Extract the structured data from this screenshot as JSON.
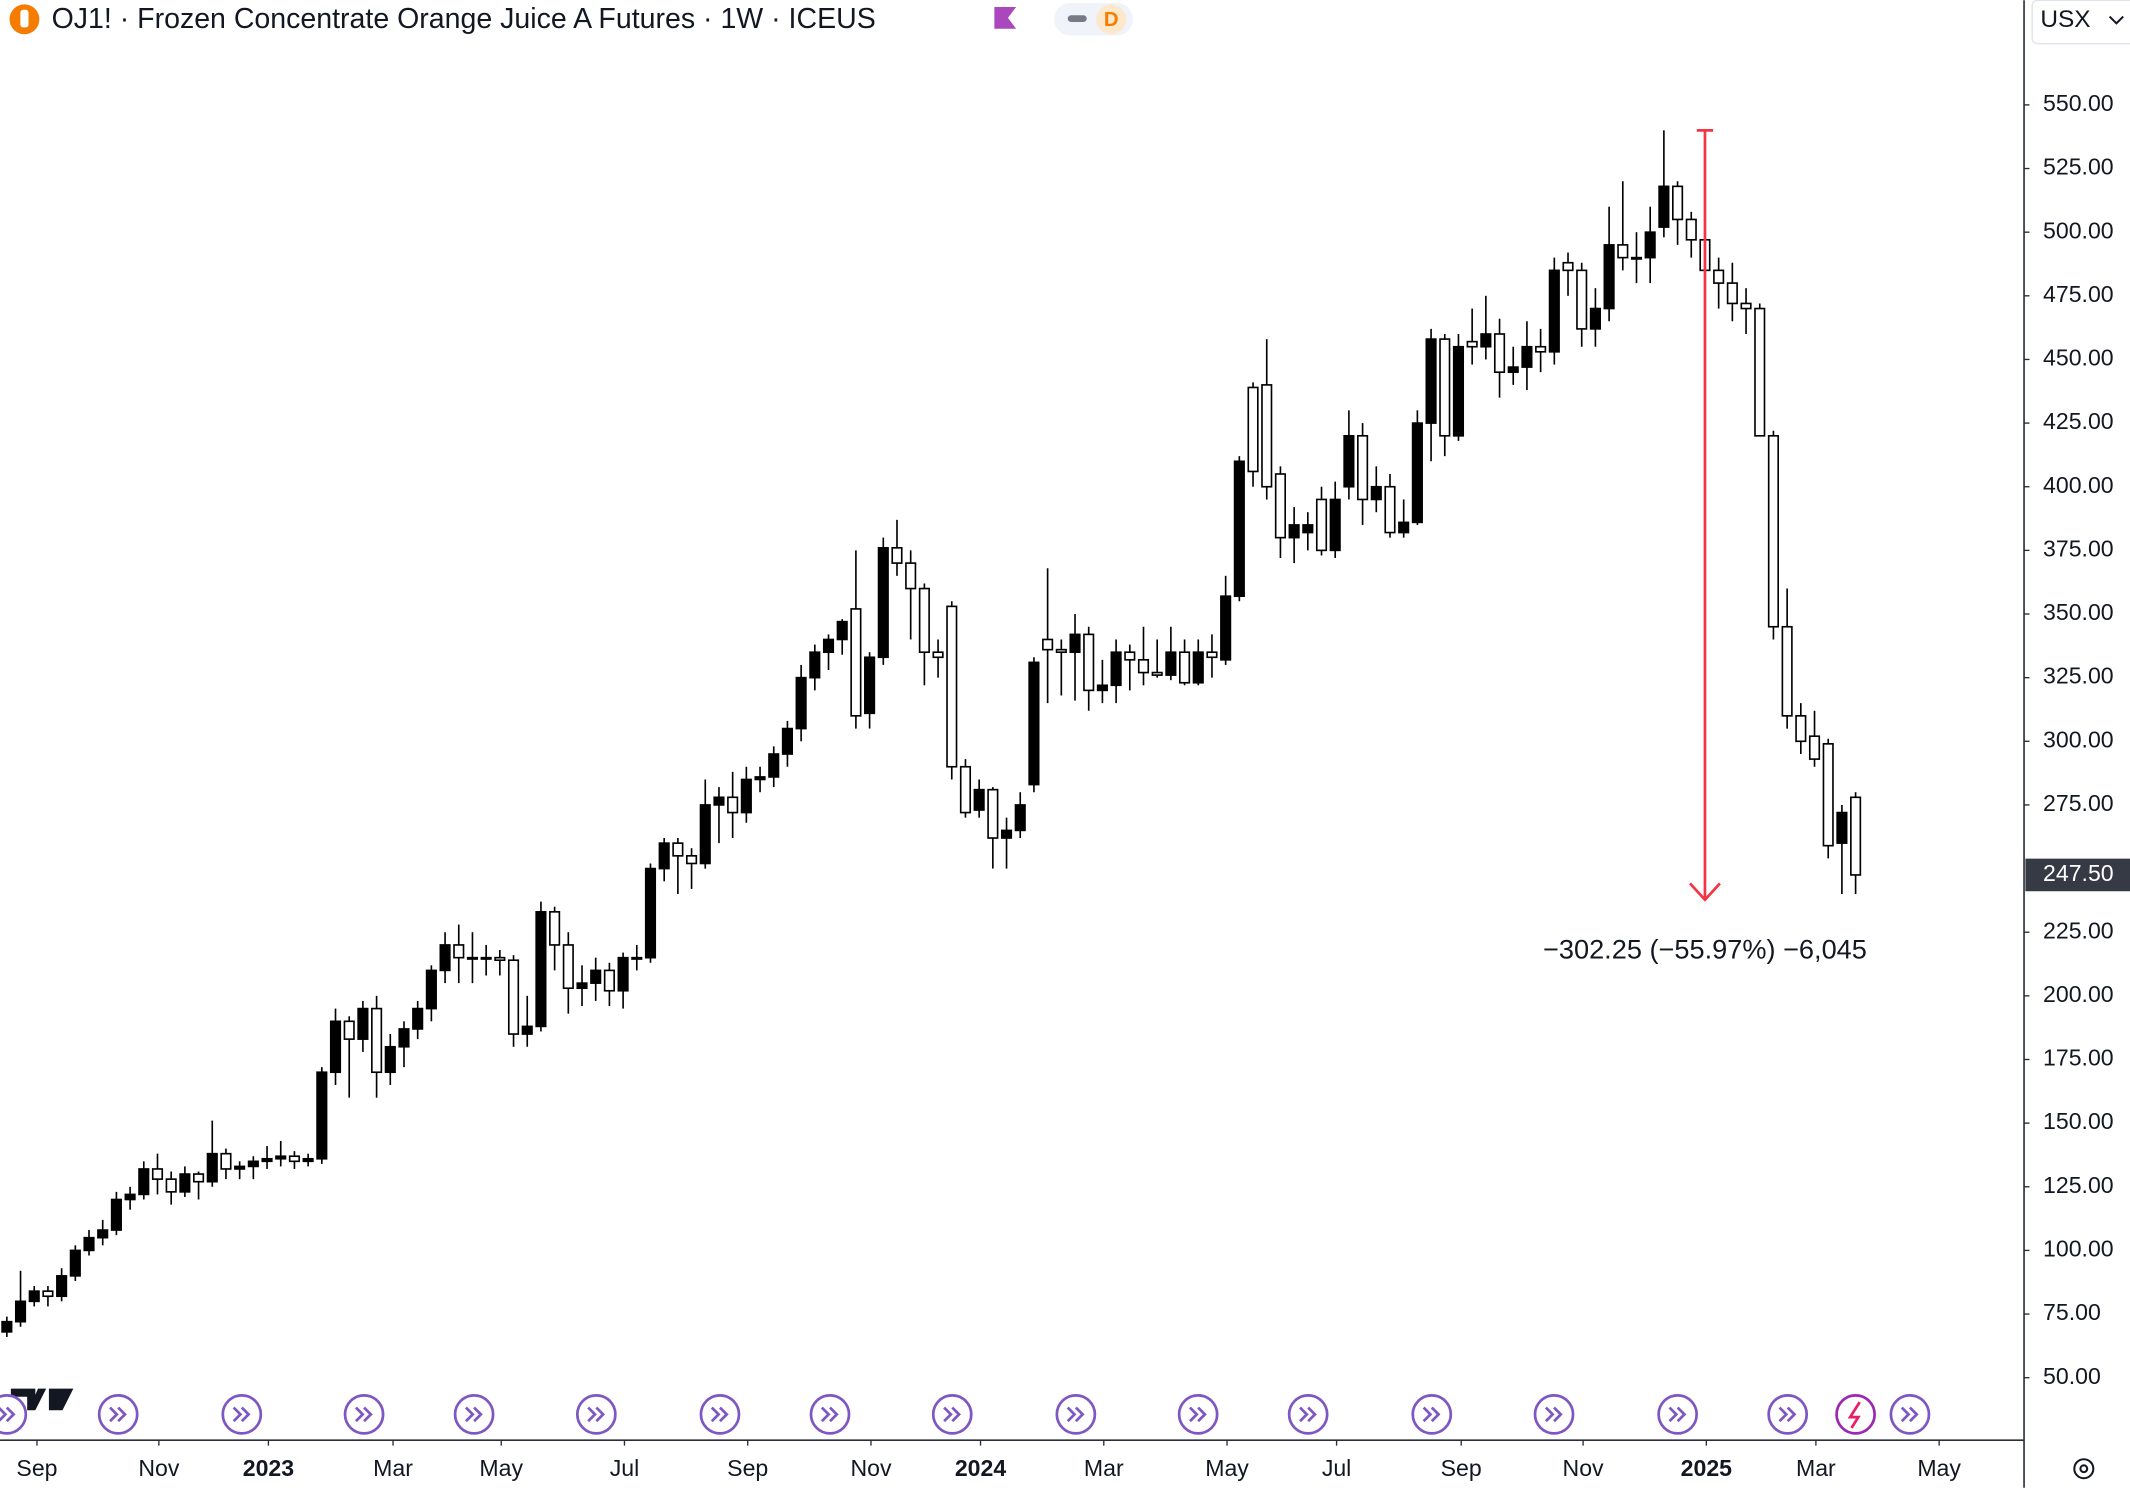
{
  "header": {
    "title": "OJ1! · Frozen Concentrate Orange Juice A Futures · 1W · ICEUS",
    "interval_badge": "D",
    "currency": "USX"
  },
  "chart_data": {
    "type": "candlestick",
    "up_color": "#000000",
    "down_color": "#ffffff",
    "wick_color": "#000000",
    "xlim": [
      -0.5,
      147.3
    ],
    "ylim": [
      25.45,
      591.1
    ],
    "xticks": [
      {
        "value": 2.2,
        "label": "Sep"
      },
      {
        "value": 11.1,
        "label": "Nov"
      },
      {
        "value": 19.1,
        "label": "2023"
      },
      {
        "value": 28.2,
        "label": "Mar"
      },
      {
        "value": 36.1,
        "label": "May"
      },
      {
        "value": 45.1,
        "label": "Jul"
      },
      {
        "value": 54.1,
        "label": "Sep"
      },
      {
        "value": 63.1,
        "label": "Nov"
      },
      {
        "value": 71.1,
        "label": "2024"
      },
      {
        "value": 80.1,
        "label": "Mar"
      },
      {
        "value": 89.1,
        "label": "May"
      },
      {
        "value": 97.1,
        "label": "Jul"
      },
      {
        "value": 106.2,
        "label": "Sep"
      },
      {
        "value": 115.1,
        "label": "Nov"
      },
      {
        "value": 124.1,
        "label": "2025"
      },
      {
        "value": 132.1,
        "label": "Mar"
      },
      {
        "value": 141.1,
        "label": "May"
      }
    ],
    "yticks": [
      {
        "value": 50,
        "label": "50.00"
      },
      {
        "value": 75,
        "label": "75.00"
      },
      {
        "value": 100,
        "label": "100.00"
      },
      {
        "value": 125,
        "label": "125.00"
      },
      {
        "value": 150,
        "label": "150.00"
      },
      {
        "value": 175,
        "label": "175.00"
      },
      {
        "value": 200,
        "label": "200.00"
      },
      {
        "value": 225,
        "label": "225.00"
      },
      {
        "value": 275,
        "label": "275.00"
      },
      {
        "value": 300,
        "label": "300.00"
      },
      {
        "value": 325,
        "label": "325.00"
      },
      {
        "value": 350,
        "label": "350.00"
      },
      {
        "value": 375,
        "label": "375.00"
      },
      {
        "value": 400,
        "label": "400.00"
      },
      {
        "value": 425,
        "label": "425.00"
      },
      {
        "value": 450,
        "label": "450.00"
      },
      {
        "value": 475,
        "label": "475.00"
      },
      {
        "value": 500,
        "label": "500.00"
      },
      {
        "value": 525,
        "label": "525.00"
      },
      {
        "value": 550,
        "label": "550.00"
      }
    ],
    "last_price": {
      "value": 247.5,
      "label": "247.50"
    },
    "measure": {
      "label": "−302.25 (−55.97%) −6,045",
      "index": 124,
      "from": 540,
      "to": 237.75
    },
    "open": [
      68,
      72,
      80,
      84,
      82,
      90,
      100,
      105,
      108,
      120,
      122,
      132,
      128,
      123,
      130,
      127,
      138,
      132,
      133,
      135,
      136,
      137,
      135,
      136,
      170,
      190,
      183,
      195,
      170,
      180,
      187,
      195,
      210,
      220,
      215,
      215,
      215,
      214,
      185,
      188,
      233,
      220,
      203,
      205,
      210,
      202,
      215,
      215,
      250,
      260,
      255,
      252,
      275,
      278,
      272,
      285,
      286,
      295,
      305,
      325,
      335,
      340,
      352,
      311,
      333,
      376,
      370,
      360,
      335,
      353,
      290,
      273,
      281,
      262,
      265,
      283,
      340,
      336,
      335,
      342,
      320,
      322,
      335,
      332,
      327,
      326,
      335,
      323,
      335,
      332,
      357,
      439,
      440,
      405,
      380,
      382,
      395,
      375,
      400,
      420,
      395,
      400,
      382,
      386,
      425,
      458,
      420,
      457,
      455,
      460,
      445,
      447,
      455,
      453,
      488,
      485,
      462,
      470,
      495,
      490,
      490,
      502,
      518,
      505,
      497,
      485,
      480,
      472,
      470,
      420,
      345,
      310,
      302,
      299,
      260,
      278
    ],
    "high": [
      74,
      92,
      86,
      86,
      93,
      102,
      108,
      112,
      123,
      125,
      135,
      138,
      131,
      133,
      131,
      151,
      140,
      135,
      137,
      141,
      143,
      139,
      138,
      172,
      195,
      192,
      198,
      200,
      185,
      190,
      198,
      212,
      225,
      228,
      225,
      220,
      218,
      216,
      200,
      237,
      235,
      225,
      212,
      215,
      213,
      217,
      220,
      252,
      262,
      262,
      258,
      285,
      282,
      288,
      290,
      290,
      298,
      308,
      330,
      338,
      342,
      348,
      375,
      335,
      380,
      387,
      375,
      362,
      340,
      355,
      293,
      285,
      282,
      270,
      280,
      333,
      368,
      340,
      350,
      345,
      332,
      340,
      338,
      345,
      340,
      345,
      340,
      340,
      342,
      365,
      412,
      441,
      458,
      408,
      392,
      390,
      400,
      402,
      430,
      425,
      408,
      405,
      395,
      430,
      462,
      460,
      460,
      470,
      475,
      466,
      455,
      465,
      462,
      490,
      492,
      488,
      478,
      510,
      520,
      500,
      510,
      540,
      520,
      508,
      505,
      490,
      488,
      478,
      472,
      422,
      360,
      315,
      312,
      301,
      275,
      280
    ],
    "low": [
      66,
      70,
      78,
      78,
      80,
      88,
      98,
      102,
      106,
      116,
      120,
      122,
      118,
      121,
      120,
      125,
      128,
      128,
      128,
      132,
      133,
      132,
      133,
      134,
      165,
      160,
      178,
      160,
      165,
      172,
      183,
      190,
      205,
      205,
      205,
      208,
      208,
      180,
      180,
      186,
      210,
      193,
      196,
      198,
      196,
      195,
      210,
      213,
      245,
      240,
      242,
      250,
      260,
      262,
      268,
      280,
      282,
      290,
      300,
      320,
      328,
      334,
      305,
      305,
      330,
      365,
      340,
      322,
      325,
      285,
      270,
      270,
      250,
      250,
      262,
      280,
      315,
      318,
      316,
      312,
      315,
      315,
      320,
      322,
      325,
      324,
      322,
      322,
      325,
      330,
      355,
      400,
      395,
      372,
      370,
      375,
      373,
      372,
      395,
      385,
      390,
      380,
      380,
      385,
      410,
      412,
      418,
      448,
      450,
      435,
      440,
      438,
      445,
      448,
      475,
      455,
      455,
      465,
      485,
      480,
      480,
      498,
      495,
      490,
      480,
      470,
      465,
      460,
      420,
      340,
      305,
      295,
      290,
      254,
      240,
      240
    ],
    "close": [
      72,
      80,
      84,
      82,
      90,
      100,
      105,
      108,
      120,
      122,
      132,
      128,
      123,
      130,
      127,
      138,
      132,
      133,
      135,
      136,
      137,
      135,
      136,
      170,
      190,
      183,
      195,
      170,
      180,
      187,
      195,
      210,
      220,
      215,
      215,
      215,
      214,
      185,
      188,
      233,
      220,
      203,
      205,
      210,
      202,
      215,
      215,
      250,
      260,
      255,
      252,
      275,
      278,
      272,
      285,
      286,
      295,
      305,
      325,
      335,
      340,
      347,
      310,
      333,
      376,
      370,
      360,
      335,
      333,
      290,
      272,
      281,
      262,
      265,
      275,
      331,
      336,
      335,
      342,
      320,
      322,
      335,
      332,
      327,
      326,
      335,
      323,
      335,
      333,
      357,
      410,
      406,
      400,
      380,
      385,
      385,
      375,
      395,
      420,
      395,
      400,
      382,
      386,
      425,
      458,
      420,
      455,
      455,
      460,
      445,
      447,
      455,
      453,
      485,
      485,
      462,
      470,
      495,
      490,
      490,
      500,
      518,
      505,
      497,
      485,
      480,
      472,
      470,
      420,
      345,
      310,
      300,
      293,
      259,
      272,
      247.5
    ]
  }
}
